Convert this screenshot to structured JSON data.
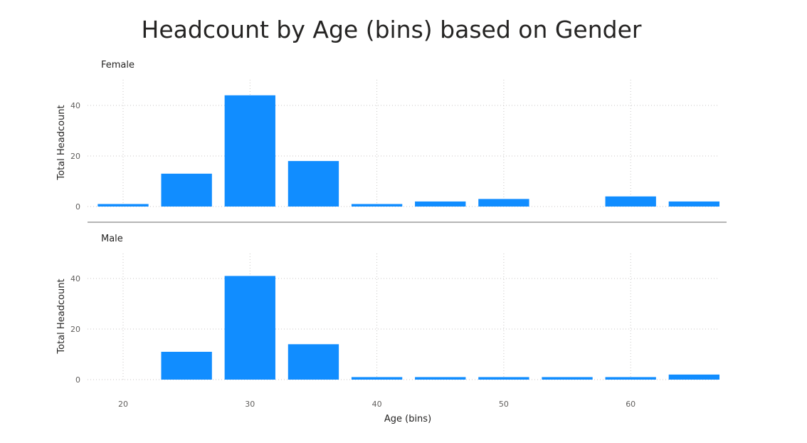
{
  "chart_data": {
    "type": "bar",
    "title": "Headcount by Age (bins) based on Gender",
    "xlabel": "Age (bins)",
    "ylabel": "Total Headcount",
    "bin_size": 5,
    "x": [
      20,
      25,
      30,
      35,
      40,
      45,
      50,
      55,
      60,
      65
    ],
    "x_ticks": [
      20,
      30,
      40,
      50,
      60
    ],
    "y_ticks": [
      0,
      20,
      40
    ],
    "ylim": [
      0,
      50
    ],
    "grid": true,
    "bar_color": "#118DFF",
    "series": [
      {
        "name": "Female",
        "values": [
          1,
          13,
          44,
          18,
          1,
          2,
          3,
          0,
          4,
          2
        ]
      },
      {
        "name": "Male",
        "values": [
          0,
          11,
          41,
          14,
          1,
          1,
          1,
          1,
          1,
          2
        ]
      }
    ]
  }
}
